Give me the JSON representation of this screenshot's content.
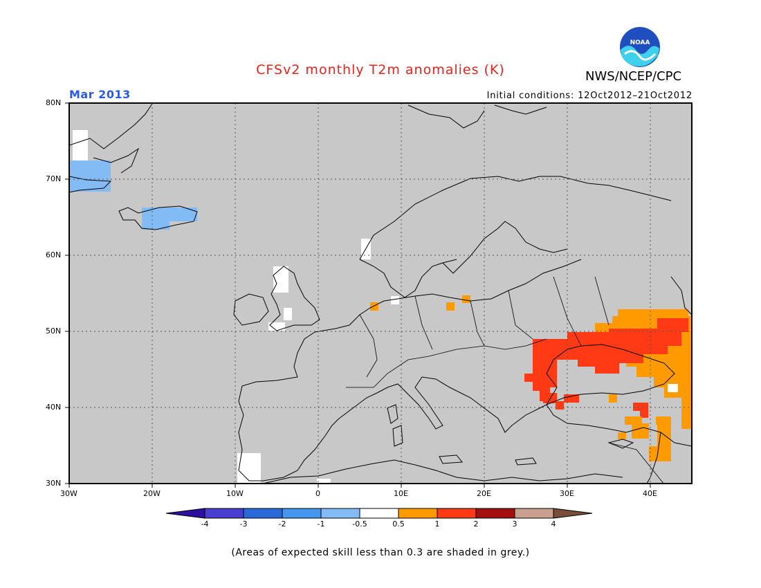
{
  "title": "CFSv2 monthly T2m anomalies (K)",
  "agency": "NWS/NCEP/CPC",
  "logo_text": "NOAA",
  "valid_month": "Mar 2013",
  "initial_conditions": "Initial conditions: 12Oct2012–21Oct2012",
  "footnote": "(Areas of expected skill less than 0.3 are shaded in grey.)",
  "map": {
    "projection": "latitude-longitude",
    "lon_range": [
      -30,
      45
    ],
    "lat_range": [
      30,
      80
    ],
    "grid": true,
    "skill_mask_color": "#c8c8c8",
    "lat_ticks": [
      "30N",
      "40N",
      "50N",
      "60N",
      "70N",
      "80N"
    ],
    "lon_ticks": [
      "30W",
      "20W",
      "10W",
      "0",
      "10E",
      "20E",
      "30E",
      "40E"
    ]
  },
  "colorbar": {
    "boundaries": [
      "-4",
      "-3",
      "-2",
      "-1",
      "-0.5",
      "0.5",
      "1",
      "2",
      "3",
      "4"
    ],
    "colors": [
      "#2e0f9e",
      "#4a3ed2",
      "#2a6ad8",
      "#4596ee",
      "#83bbf4",
      "#ffffff",
      "#ff9b00",
      "#ff3a14",
      "#a30f0f",
      "#c9a08e",
      "#7a4d3a"
    ]
  },
  "anomaly_regions": [
    {
      "name": "greenland-east-coast",
      "category": "-1 to -0.5",
      "color": "#83bbf4"
    },
    {
      "name": "iceland",
      "category": "-1 to -0.5",
      "color": "#83bbf4"
    },
    {
      "name": "ukraine-black-sea",
      "category": "1 to 2",
      "color": "#ff3a14"
    },
    {
      "name": "southern-russia-caucasus",
      "category": "0.5 to 1",
      "color": "#ff9b00"
    },
    {
      "name": "turkey-east",
      "category": "0.5 to 1",
      "color": "#ff9b00"
    },
    {
      "name": "near-normal-patches",
      "category": "-0.5 to 0.5",
      "color": "#ffffff"
    }
  ]
}
